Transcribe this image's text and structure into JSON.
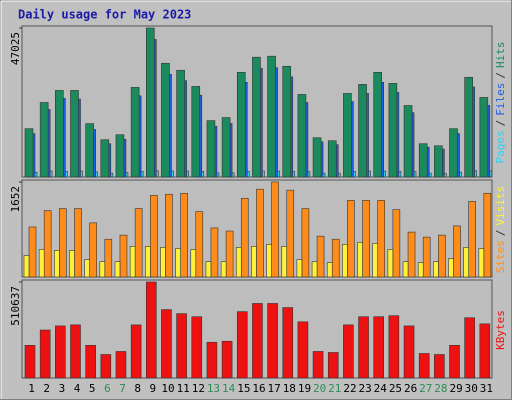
{
  "chart_data": [
    {
      "type": "bar",
      "title": "Daily usage for May 2023",
      "legend_separator": "/",
      "ylim": [
        0,
        47025
      ],
      "yticks": [
        47025
      ],
      "series": [
        {
          "name": "Pages",
          "color": "#33d0f0",
          "values": [
            1500,
            1900,
            1800,
            1900,
            1600,
            1200,
            1400,
            1800,
            2000,
            1900,
            1900,
            1800,
            1300,
            1300,
            1800,
            1900,
            1900,
            1800,
            1700,
            1200,
            1200,
            1800,
            1900,
            1900,
            1800,
            1700,
            1200,
            1100,
            1500,
            2000,
            1900
          ]
        },
        {
          "name": "Files",
          "color": "#1f5fe8",
          "values": [
            13700,
            21300,
            24800,
            24600,
            15000,
            10500,
            11900,
            25600,
            43400,
            32400,
            30400,
            25800,
            16000,
            16900,
            29900,
            34300,
            34500,
            31600,
            23500,
            11100,
            10200,
            23800,
            26400,
            29900,
            26700,
            20300,
            9400,
            8800,
            13700,
            28400,
            22600
          ]
        },
        {
          "name": "Hits",
          "color": "#1b8a5c",
          "values": [
            15250,
            23510,
            27320,
            27320,
            16840,
            11760,
            13340,
            28280,
            47025,
            35900,
            33680,
            28590,
            17790,
            18750,
            33040,
            37810,
            38130,
            34950,
            26050,
            12390,
            11440,
            26370,
            29230,
            33040,
            29550,
            22560,
            10490,
            9850,
            15250,
            31450,
            25100
          ]
        }
      ]
    },
    {
      "type": "bar",
      "legend_separator": "/",
      "ylim": [
        0,
        1652
      ],
      "yticks": [
        1652
      ],
      "series": [
        {
          "name": "Sites",
          "color": "#ff8c1a",
          "values": [
            870,
            1154,
            1190,
            1190,
            941,
            657,
            728,
            1190,
            1421,
            1439,
            1456,
            1137,
            853,
            799,
            1368,
            1527,
            1652,
            1510,
            1190,
            710,
            657,
            1332,
            1332,
            1332,
            1172,
            781,
            693,
            728,
            888,
            1314,
            1456
          ]
        },
        {
          "name": "Visits",
          "color": "#fff03a",
          "values": [
            373,
            480,
            462,
            462,
            302,
            266,
            266,
            533,
            533,
            515,
            497,
            480,
            266,
            266,
            515,
            533,
            568,
            533,
            302,
            266,
            249,
            568,
            604,
            586,
            480,
            266,
            249,
            266,
            320,
            515,
            497
          ]
        }
      ]
    },
    {
      "type": "bar",
      "ylim": [
        0,
        510637
      ],
      "yticks": [
        510637
      ],
      "categories": [
        "1",
        "2",
        "3",
        "4",
        "5",
        "6",
        "7",
        "8",
        "9",
        "10",
        "11",
        "12",
        "13",
        "14",
        "15",
        "16",
        "17",
        "18",
        "19",
        "20",
        "21",
        "22",
        "23",
        "24",
        "25",
        "26",
        "27",
        "28",
        "29",
        "30",
        "31"
      ],
      "category_colors": [
        "#000",
        "#000",
        "#000",
        "#000",
        "#000",
        "#2e8b57",
        "#2e8b57",
        "#000",
        "#000",
        "#000",
        "#000",
        "#000",
        "#2e8b57",
        "#2e8b57",
        "#000",
        "#000",
        "#000",
        "#000",
        "#000",
        "#2e8b57",
        "#2e8b57",
        "#000",
        "#000",
        "#000",
        "#000",
        "#000",
        "#2e8b57",
        "#2e8b57",
        "#000",
        "#000",
        "#000"
      ],
      "series": [
        {
          "name": "KBytes",
          "color": "#ee1111",
          "values": [
            173800,
            255300,
            277000,
            282500,
            173800,
            124900,
            141200,
            282500,
            510637,
            363900,
            342200,
            325900,
            190100,
            195600,
            353100,
            396500,
            396500,
            374800,
            298800,
            141200,
            135800,
            282500,
            325900,
            325900,
            331400,
            277000,
            130400,
            124900,
            173800,
            320500,
            287900
          ]
        }
      ]
    }
  ]
}
